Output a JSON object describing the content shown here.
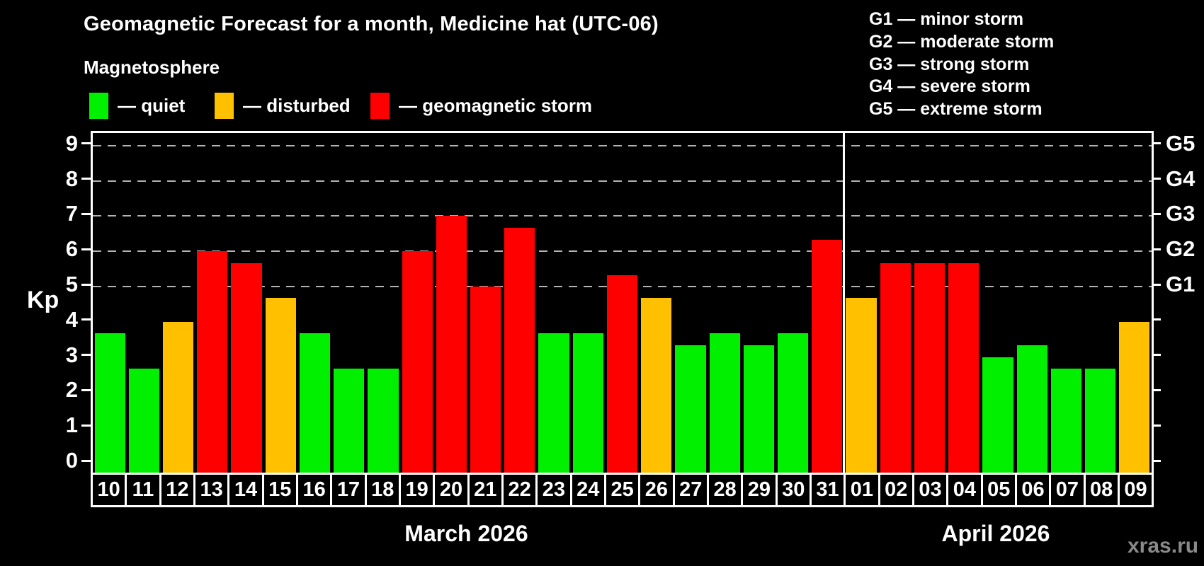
{
  "title": "Geomagnetic Forecast for a month, Medicine hat (UTC-06)",
  "subtitle": "Magnetosphere",
  "legend": {
    "items": [
      {
        "status": "quiet",
        "label": "— quiet"
      },
      {
        "status": "disturbed",
        "label": "— disturbed"
      },
      {
        "status": "storm",
        "label": "— geomagnetic storm"
      }
    ]
  },
  "storm_scale_legend": [
    "G1 — minor storm",
    "G2 — moderate storm",
    "G3 — strong storm",
    "G4 — severe storm",
    "G5 — extreme storm"
  ],
  "colors": {
    "quiet": "#00f000",
    "disturbed": "#ffc000",
    "storm": "#ff0000",
    "background": "#000000",
    "axis": "#ffffff",
    "gridline": "#b3b3b3",
    "watermark": "#8a8a8a"
  },
  "watermark": "xras.ru",
  "chart_data": {
    "type": "bar",
    "title": "Geomagnetic Forecast for a month, Medicine hat (UTC-06)",
    "ylabel": "Kp",
    "xlabel": "",
    "ylim": [
      0,
      9.4
    ],
    "grid": "horizontal dashed lines at Kp 5-9 (G1-G5) only",
    "legend_position": "top-left (status colors), top-right (G scale)",
    "left_axis_ticks": [
      "0",
      "1",
      "2",
      "3",
      "4",
      "5",
      "6",
      "7",
      "8",
      "9"
    ],
    "right_axis_labels": [
      {
        "kp": 5,
        "label": "G1"
      },
      {
        "kp": 6,
        "label": "G2"
      },
      {
        "kp": 7,
        "label": "G3"
      },
      {
        "kp": 8,
        "label": "G4"
      },
      {
        "kp": 9,
        "label": "G5"
      }
    ],
    "gridlines_at": [
      5,
      6,
      7,
      8,
      9
    ],
    "months": [
      {
        "label": "March 2026",
        "days": [
          {
            "day": "10",
            "kp": 3.67,
            "status": "quiet"
          },
          {
            "day": "11",
            "kp": 2.67,
            "status": "quiet"
          },
          {
            "day": "12",
            "kp": 4.0,
            "status": "disturbed"
          },
          {
            "day": "13",
            "kp": 6.0,
            "status": "storm"
          },
          {
            "day": "14",
            "kp": 5.67,
            "status": "storm"
          },
          {
            "day": "15",
            "kp": 4.67,
            "status": "disturbed"
          },
          {
            "day": "16",
            "kp": 3.67,
            "status": "quiet"
          },
          {
            "day": "17",
            "kp": 2.67,
            "status": "quiet"
          },
          {
            "day": "18",
            "kp": 2.67,
            "status": "quiet"
          },
          {
            "day": "19",
            "kp": 6.0,
            "status": "storm"
          },
          {
            "day": "20",
            "kp": 7.0,
            "status": "storm"
          },
          {
            "day": "21",
            "kp": 5.0,
            "status": "storm"
          },
          {
            "day": "22",
            "kp": 6.67,
            "status": "storm"
          },
          {
            "day": "23",
            "kp": 3.67,
            "status": "quiet"
          },
          {
            "day": "24",
            "kp": 3.67,
            "status": "quiet"
          },
          {
            "day": "25",
            "kp": 5.33,
            "status": "storm"
          },
          {
            "day": "26",
            "kp": 4.67,
            "status": "disturbed"
          },
          {
            "day": "27",
            "kp": 3.33,
            "status": "quiet"
          },
          {
            "day": "28",
            "kp": 3.67,
            "status": "quiet"
          },
          {
            "day": "29",
            "kp": 3.33,
            "status": "quiet"
          },
          {
            "day": "30",
            "kp": 3.67,
            "status": "quiet"
          },
          {
            "day": "31",
            "kp": 6.33,
            "status": "storm"
          }
        ]
      },
      {
        "label": "April 2026",
        "days": [
          {
            "day": "01",
            "kp": 4.67,
            "status": "disturbed"
          },
          {
            "day": "02",
            "kp": 5.67,
            "status": "storm"
          },
          {
            "day": "03",
            "kp": 5.67,
            "status": "storm"
          },
          {
            "day": "04",
            "kp": 5.67,
            "status": "storm"
          },
          {
            "day": "05",
            "kp": 3.0,
            "status": "quiet"
          },
          {
            "day": "06",
            "kp": 3.33,
            "status": "quiet"
          },
          {
            "day": "07",
            "kp": 2.67,
            "status": "quiet"
          },
          {
            "day": "08",
            "kp": 2.67,
            "status": "quiet"
          },
          {
            "day": "09",
            "kp": 4.0,
            "status": "disturbed"
          }
        ]
      }
    ]
  }
}
